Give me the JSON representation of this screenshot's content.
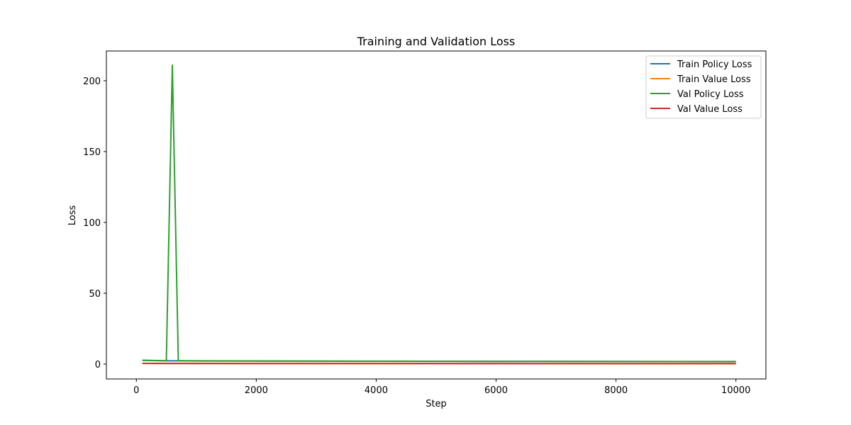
{
  "chart_data": {
    "type": "line",
    "title": "Training and Validation Loss",
    "xlabel": "Step",
    "ylabel": "Loss",
    "xlim": [
      -500,
      10500
    ],
    "ylim": [
      -10.5,
      221
    ],
    "xticks": [
      0,
      2000,
      4000,
      6000,
      8000,
      10000
    ],
    "yticks": [
      0,
      50,
      100,
      150,
      200
    ],
    "grid": false,
    "legend_position": "top-right",
    "series": [
      {
        "name": "Train Policy Loss",
        "color": "#1f77b4",
        "x": [
          100,
          500,
          600,
          700,
          1000,
          2000,
          3000,
          4000,
          5000,
          6000,
          7000,
          8000,
          9000,
          10000
        ],
        "y": [
          2.6,
          2.3,
          2.3,
          2.3,
          2.2,
          2.1,
          2.05,
          2.0,
          1.95,
          1.9,
          1.85,
          1.8,
          1.75,
          1.7
        ]
      },
      {
        "name": "Train Value Loss",
        "color": "#ff7f0e",
        "x": [
          100,
          500,
          1000,
          2000,
          3000,
          4000,
          5000,
          6000,
          7000,
          8000,
          9000,
          10000
        ],
        "y": [
          0.5,
          0.45,
          0.4,
          0.38,
          0.36,
          0.35,
          0.34,
          0.33,
          0.32,
          0.31,
          0.3,
          0.3
        ]
      },
      {
        "name": "Val Policy Loss",
        "color": "#2ca02c",
        "x": [
          100,
          500,
          600,
          700,
          1000,
          2000,
          3000,
          4000,
          5000,
          6000,
          7000,
          8000,
          9000,
          10000
        ],
        "y": [
          2.7,
          2.4,
          211,
          2.4,
          2.3,
          2.2,
          2.1,
          2.05,
          2.0,
          1.95,
          1.9,
          1.85,
          1.8,
          1.8
        ]
      },
      {
        "name": "Val Value Loss",
        "color": "#d62728",
        "x": [
          100,
          500,
          1000,
          2000,
          3000,
          4000,
          5000,
          6000,
          7000,
          8000,
          9000,
          10000
        ],
        "y": [
          0.5,
          0.45,
          0.42,
          0.4,
          0.38,
          0.37,
          0.36,
          0.35,
          0.34,
          0.33,
          0.32,
          0.32
        ]
      }
    ]
  }
}
